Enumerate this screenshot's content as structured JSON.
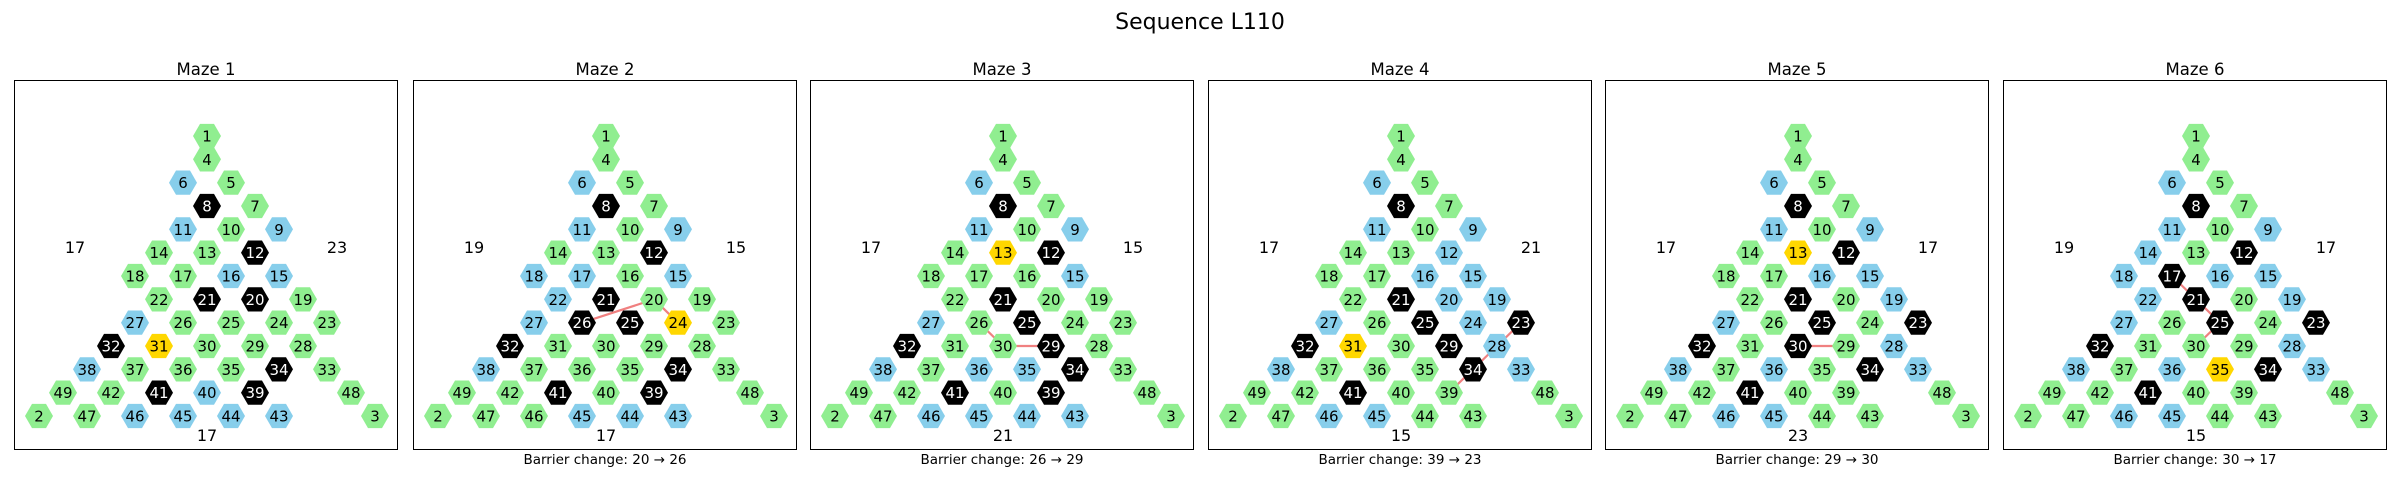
{
  "title": "Sequence L110",
  "colors": {
    "open": "#90ee90",
    "marked": "#87ceeb",
    "barrier": "#000000",
    "current": "#ffd700",
    "path": "#f08080",
    "cell_text_light": "#000000",
    "cell_text_dark": "#ffffff"
  },
  "cell_numbers": [
    [
      1
    ],
    [
      4
    ],
    [
      6,
      5
    ],
    [
      8,
      7
    ],
    [
      11,
      10,
      9
    ],
    [
      14,
      13,
      12
    ],
    [
      18,
      17,
      16,
      15
    ],
    [
      22,
      21,
      20,
      19
    ],
    [
      27,
      26,
      25,
      24,
      23
    ],
    [
      32,
      31,
      30,
      29,
      28
    ],
    [
      38,
      37,
      36,
      35,
      34,
      33
    ],
    [
      49,
      42,
      41,
      40,
      39,
      48
    ],
    [
      2,
      47,
      46,
      45,
      44,
      43,
      3
    ]
  ],
  "mazes": [
    {
      "title": "Maze 1",
      "caption": "",
      "side_left": "17",
      "side_right": "23",
      "bottom": "17",
      "barriers": [
        8,
        12,
        21,
        20,
        32,
        34,
        41,
        39
      ],
      "marked": [
        6,
        11,
        9,
        16,
        15,
        27,
        38,
        40,
        46,
        45,
        44,
        43
      ],
      "current": [
        31
      ],
      "path": []
    },
    {
      "title": "Maze 2",
      "caption": "Barrier change: 20 → 26",
      "side_left": "19",
      "side_right": "15",
      "bottom": "17",
      "barriers": [
        8,
        12,
        21,
        26,
        25,
        32,
        34,
        41,
        39
      ],
      "marked": [
        6,
        11,
        9,
        18,
        17,
        15,
        22,
        27,
        38,
        45,
        44,
        43
      ],
      "current": [
        24
      ],
      "path": [
        [
          24,
          20
        ],
        [
          20,
          26
        ]
      ]
    },
    {
      "title": "Maze 3",
      "caption": "Barrier change: 26 → 29",
      "side_left": "17",
      "side_right": "15",
      "bottom": "21",
      "barriers": [
        8,
        12,
        21,
        25,
        29,
        32,
        34,
        41,
        39
      ],
      "marked": [
        6,
        11,
        9,
        15,
        27,
        38,
        36,
        35,
        46,
        45,
        44,
        43
      ],
      "current": [
        13
      ],
      "path": [
        [
          26,
          30
        ],
        [
          30,
          29
        ]
      ]
    },
    {
      "title": "Maze 4",
      "caption": "Barrier change: 39 → 23",
      "side_left": "17",
      "side_right": "21",
      "bottom": "15",
      "barriers": [
        8,
        21,
        25,
        29,
        23,
        32,
        34,
        41
      ],
      "marked": [
        6,
        11,
        16,
        15,
        20,
        19,
        24,
        27,
        38,
        28,
        33,
        46,
        45,
        12,
        9
      ],
      "current": [
        31
      ],
      "path": [
        [
          39,
          28
        ],
        [
          28,
          23
        ]
      ]
    },
    {
      "title": "Maze 5",
      "caption": "Barrier change: 29 → 30",
      "side_left": "17",
      "side_right": "17",
      "bottom": "23",
      "barriers": [
        8,
        12,
        21,
        25,
        30,
        23,
        32,
        34,
        41
      ],
      "marked": [
        6,
        11,
        9,
        16,
        15,
        19,
        27,
        28,
        38,
        36,
        33,
        46,
        45
      ],
      "current": [
        13
      ],
      "path": [
        [
          30,
          29
        ]
      ]
    },
    {
      "title": "Maze 6",
      "caption": "Barrier change: 30 → 17",
      "side_left": "19",
      "side_right": "17",
      "bottom": "15",
      "barriers": [
        8,
        12,
        17,
        21,
        25,
        23,
        32,
        34,
        41
      ],
      "marked": [
        6,
        11,
        9,
        14,
        18,
        16,
        15,
        19,
        22,
        27,
        38,
        28,
        33,
        36,
        46,
        45
      ],
      "current": [
        35
      ],
      "path": [
        [
          30,
          25
        ],
        [
          25,
          17
        ]
      ]
    }
  ]
}
